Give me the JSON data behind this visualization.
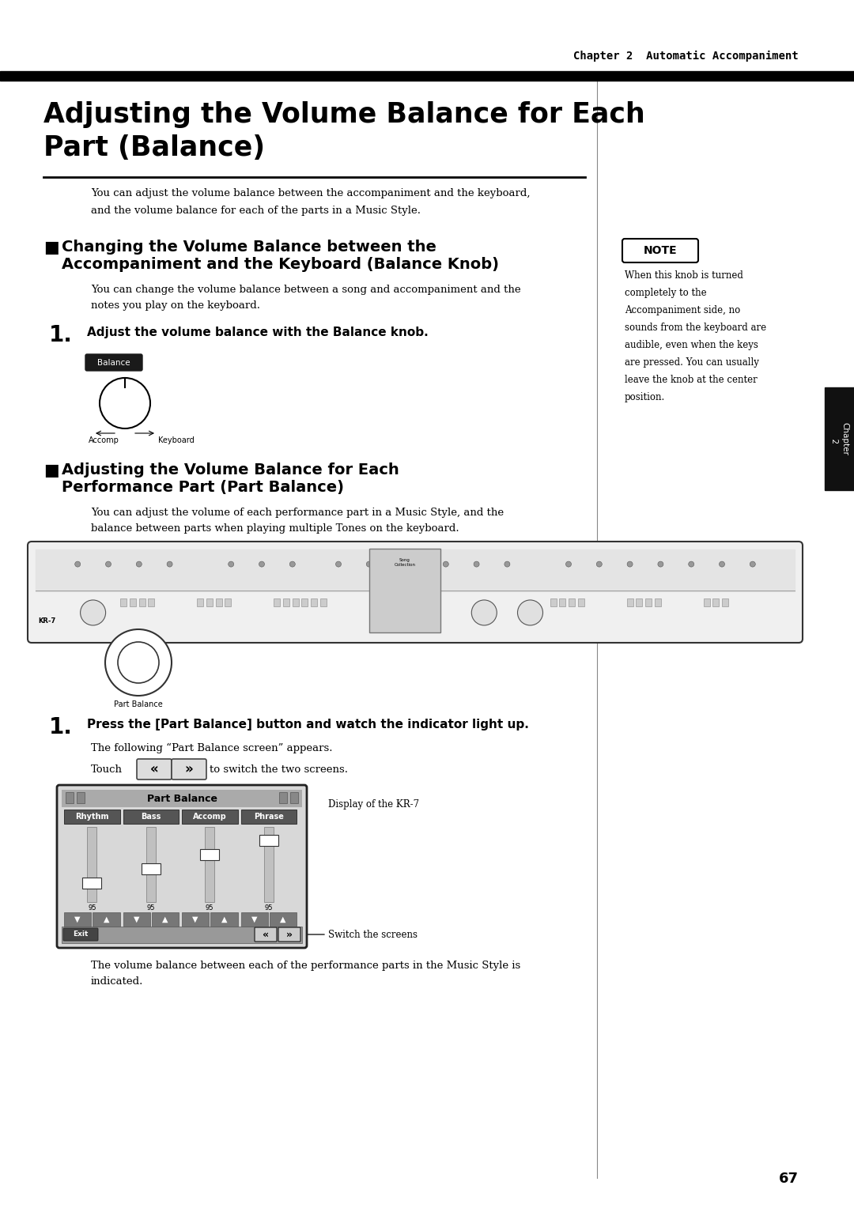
{
  "page_bg": "#ffffff",
  "header_text": "Chapter 2  Automatic Accompaniment",
  "main_title_line1": "Adjusting the Volume Balance for Each",
  "main_title_line2": "Part (Balance)",
  "intro_text": "You can adjust the volume balance between the accompaniment and the keyboard,\nand the volume balance for each of the parts in a Music Style.",
  "section1_sq": "■",
  "section1_title_line1": " Changing the Volume Balance between the",
  "section1_title_line2": " Accompaniment and the Keyboard (Balance Knob)",
  "section1_body": "You can change the volume balance between a song and accompaniment and the\nnotes you play on the keyboard.",
  "step1_text": "Adjust the volume balance with the Balance knob.",
  "balance_btn_text": "Balance",
  "knob_label_left": "Accomp",
  "knob_label_right": "Keyboard",
  "note_box_title": "NOTE",
  "note_text": "When this knob is turned\ncompletely to the\nAccompaniment side, no\nsounds from the keyboard are\naudible, even when the keys\nare pressed. You can usually\nleave the knob at the center\nposition.",
  "chapter_tab_text": "Chapter\n  2",
  "section2_sq": "■",
  "section2_title_line1": " Adjusting the Volume Balance for Each",
  "section2_title_line2": " Performance Part (Part Balance)",
  "section2_body": "You can adjust the volume of each performance part in a Music Style, and the\nbalance between parts when playing multiple Tones on the keyboard.",
  "step2_text": "Press the [Part Balance] button and watch the indicator light up.",
  "step2_body1": "The following “Part Balance screen” appears.",
  "step2_body2_pre": "Touch",
  "step2_body2_post": "to switch the two screens.",
  "screen_title": "Part Balance",
  "screen_labels": [
    "Rhythm",
    "Bass",
    "Accomp",
    "Phrase"
  ],
  "display_label": "Display of the KR-7",
  "switch_label": "Switch the screens",
  "final_text": "The volume balance between each of the performance parts in the Music Style is\nindicated.",
  "page_number": "67"
}
